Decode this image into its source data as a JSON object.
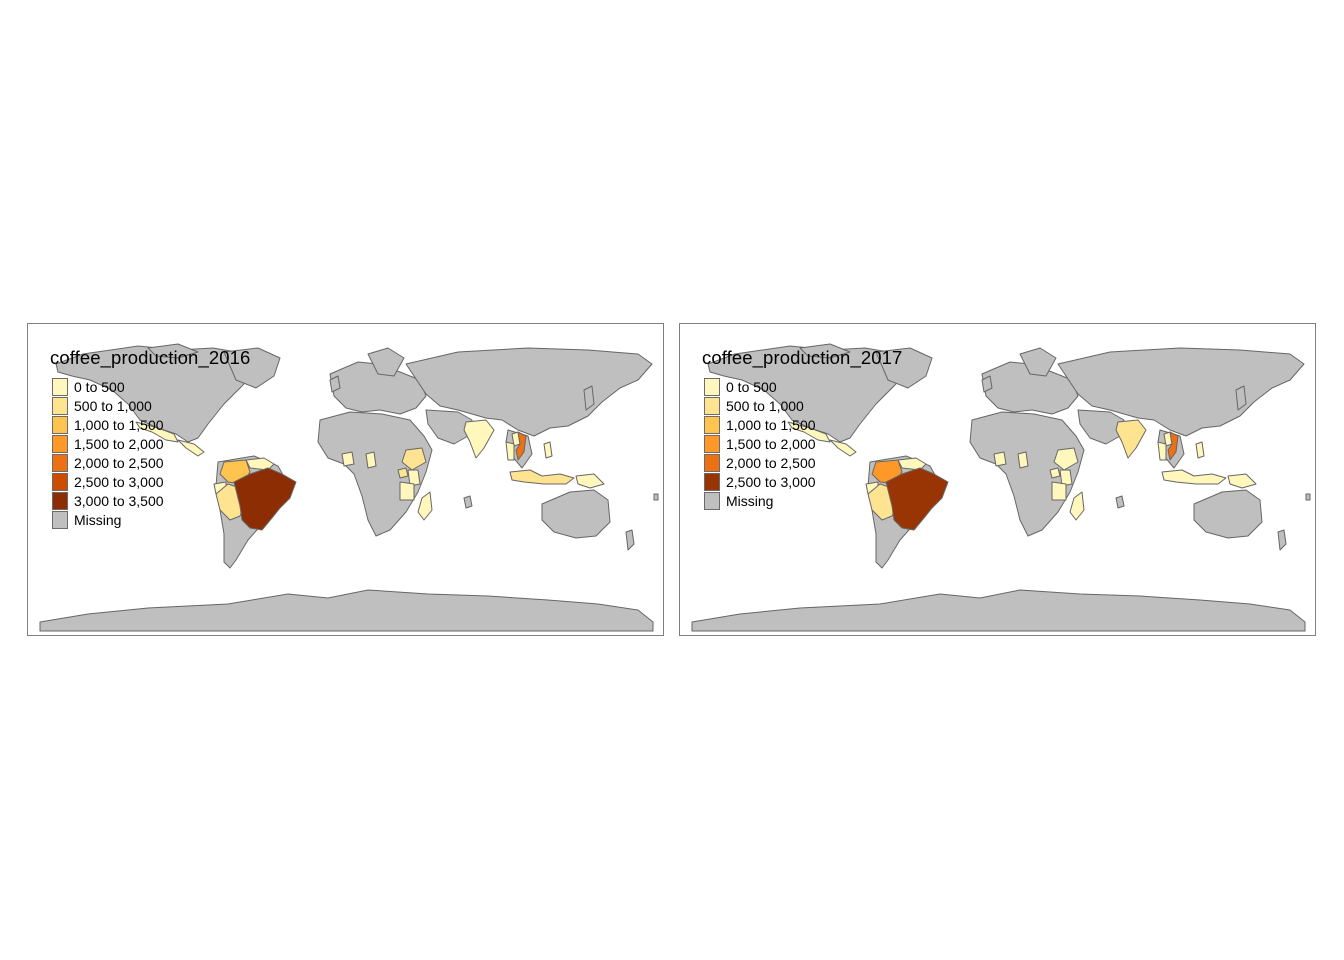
{
  "maps": [
    {
      "title": "coffee_production_2016",
      "legend": [
        {
          "label": "0 to 500",
          "color": "#FFF7BC"
        },
        {
          "label": "500 to 1,000",
          "color": "#FEE391"
        },
        {
          "label": "1,000 to 1,500",
          "color": "#FEC44F"
        },
        {
          "label": "1,500 to 2,000",
          "color": "#FE9929"
        },
        {
          "label": "2,000 to 2,500",
          "color": "#EC7014"
        },
        {
          "label": "2,500 to 3,000",
          "color": "#CC4C02"
        },
        {
          "label": "3,000 to 3,500",
          "color": "#8C2D04"
        },
        {
          "label": "Missing",
          "color": "#BFBFBF"
        }
      ],
      "highlight": {
        "brazil": "#8C2D04",
        "colombia": "#FEC44F",
        "peru": "#FEE391",
        "venezuela": "#FFF7BC",
        "ecuador": "#FFF7BC",
        "bolivia": "#FFF7BC",
        "central_america": "#FFF7BC",
        "mexico": "#FFF7BC",
        "vietnam": "#EC7014",
        "indonesia": "#FEE391",
        "india": "#FFF7BC",
        "ethiopia": "#FEE391",
        "uganda": "#FEE391",
        "kenya": "#FFF7BC",
        "tanzania": "#FFF7BC",
        "ivory_coast": "#FFF7BC",
        "cameroon": "#FFF7BC",
        "madagascar": "#FFF7BC",
        "png": "#FFF7BC",
        "laos": "#FFF7BC",
        "thailand": "#FFF7BC",
        "philippines": "#FFF7BC"
      }
    },
    {
      "title": "coffee_production_2017",
      "legend": [
        {
          "label": "0 to 500",
          "color": "#FFF7BC"
        },
        {
          "label": "500 to 1,000",
          "color": "#FEE391"
        },
        {
          "label": "1,000 to 1,500",
          "color": "#FEC44F"
        },
        {
          "label": "1,500 to 2,000",
          "color": "#FE9929"
        },
        {
          "label": "2,000 to 2,500",
          "color": "#EC7014"
        },
        {
          "label": "2,500 to 3,000",
          "color": "#993404"
        },
        {
          "label": "Missing",
          "color": "#BFBFBF"
        }
      ],
      "highlight": {
        "brazil": "#993404",
        "colombia": "#FE9929",
        "peru": "#FEE391",
        "venezuela": "#FFF7BC",
        "ecuador": "#FFF7BC",
        "bolivia": "#FFF7BC",
        "central_america": "#FFF7BC",
        "mexico": "#FFF7BC",
        "vietnam": "#EC7014",
        "indonesia": "#FFF7BC",
        "india": "#FEE391",
        "ethiopia": "#FFF7BC",
        "uganda": "#FFF7BC",
        "kenya": "#FFF7BC",
        "tanzania": "#FFF7BC",
        "ivory_coast": "#FFF7BC",
        "cameroon": "#FFF7BC",
        "madagascar": "#FFF7BC",
        "png": "#FFF7BC",
        "laos": "#FFF7BC",
        "thailand": "#FFF7BC",
        "philippines": "#FFF7BC"
      }
    }
  ]
}
